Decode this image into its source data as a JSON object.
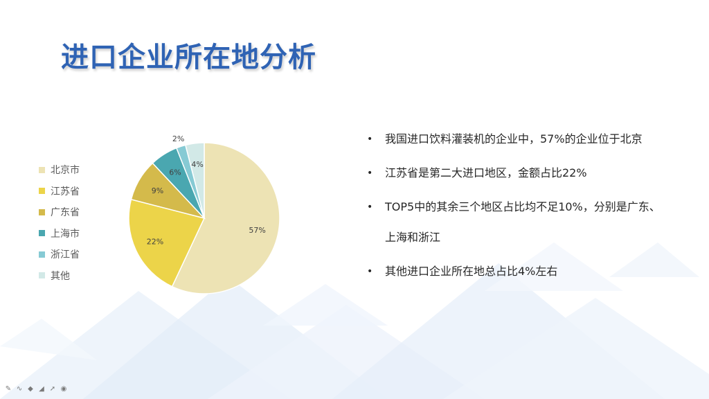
{
  "title": "进口企业所在地分析",
  "chart_data": {
    "type": "pie",
    "categories": [
      "北京市",
      "江苏省",
      "广东省",
      "上海市",
      "浙江省",
      "其他"
    ],
    "values": [
      57,
      22,
      9,
      6,
      2,
      4
    ],
    "labels": [
      "57%",
      "22%",
      "9%",
      "6%",
      "2%",
      "4%"
    ],
    "colors": [
      "#ede3b4",
      "#ecd449",
      "#d4ba4b",
      "#4aa7b0",
      "#86cad4",
      "#d2e9e7"
    ],
    "legend_position": "left"
  },
  "bullets": [
    "我国进口饮料灌装机的企业中，57%的企业位于北京",
    "江苏省是第二大进口地区，金额占比22%",
    "TOP5中的其余三个地区占比均不足10%，分别是广东、上海和浙江",
    "其他进口企业所在地总占比4%左右"
  ],
  "toolbar": {
    "icons": [
      "pen-icon",
      "ink-icon",
      "highlighter-icon",
      "eraser-icon",
      "pointer-icon",
      "laser-icon"
    ]
  }
}
